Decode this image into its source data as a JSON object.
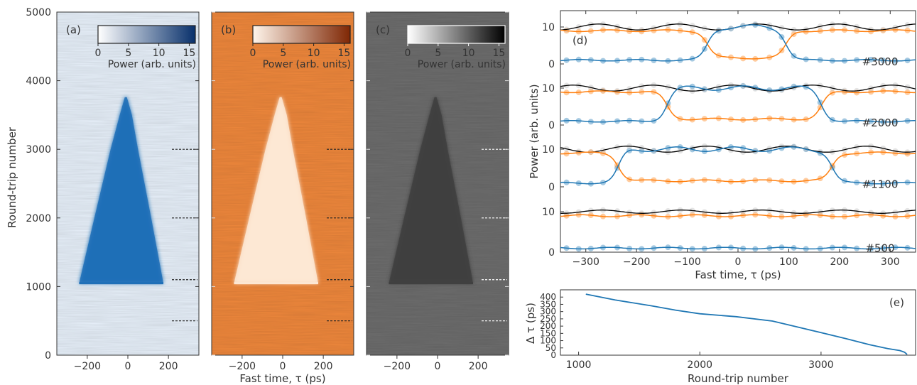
{
  "chart_data": [
    {
      "panel": "(a)",
      "type": "heatmap",
      "ylabel": "Round-trip number",
      "ylim": [
        0,
        5000
      ],
      "xlim": [
        -350,
        350
      ],
      "xticks": [
        "−200",
        "0",
        "200"
      ],
      "yticks": [
        "0",
        "1000",
        "2000",
        "3000",
        "4000",
        "5000"
      ],
      "colorbar": {
        "label": "Power (arb. units)",
        "ticks": [
          "0",
          "5",
          "10",
          "15"
        ],
        "range": [
          0,
          16
        ],
        "colormap": [
          "#ffffff",
          "#08306b"
        ]
      },
      "background_color": "#e8f1fb",
      "dome_color": "#1f6fb7",
      "dome_boundary": [
        {
          "y": 1050,
          "left": -240,
          "right": 175
        },
        {
          "y": 2000,
          "left": -165,
          "right": 115
        },
        {
          "y": 3000,
          "left": -85,
          "right": 50
        },
        {
          "y": 3500,
          "left": -40,
          "right": 20
        },
        {
          "y": 3760,
          "left": -15,
          "right": -5
        }
      ],
      "marker_rows": [
        500,
        1100,
        2000,
        3000
      ]
    },
    {
      "panel": "(b)",
      "type": "heatmap",
      "xlabel": "Fast time, τ (ps)",
      "ylim": [
        0,
        5000
      ],
      "xlim": [
        -350,
        350
      ],
      "xticks": [
        "−200",
        "0",
        "200"
      ],
      "colorbar": {
        "label": "Power (arb. units)",
        "ticks": [
          "0",
          "5",
          "10",
          "15"
        ],
        "range": [
          0,
          16
        ],
        "colormap": [
          "#fff5eb",
          "#7f2704"
        ]
      },
      "background_color": "#f0883c",
      "dome_color": "#fde7d3",
      "marker_rows": [
        500,
        1100,
        2000,
        3000
      ]
    },
    {
      "panel": "(c)",
      "type": "heatmap",
      "ylim": [
        0,
        5000
      ],
      "xlim": [
        -350,
        350
      ],
      "xticks": [
        "−200",
        "0",
        "200"
      ],
      "colorbar": {
        "label": "Power (arb. units)",
        "ticks": [
          "0",
          "5",
          "10",
          "15"
        ],
        "range": [
          0,
          16
        ],
        "colormap": [
          "#ffffff",
          "#000000"
        ]
      },
      "background_color": "#6d6d6d",
      "dome_color": "#404040",
      "marker_rows": [
        500,
        1100,
        2000,
        3000
      ]
    },
    {
      "panel": "(d)",
      "type": "line",
      "xlabel": "Fast time, τ (ps)",
      "ylabel": "Power (arb. units)",
      "xlim": [
        -350,
        350
      ],
      "xticks": [
        "−300",
        "−200",
        "−100",
        "0",
        "100",
        "200",
        "300"
      ],
      "colors": {
        "blue": "#1f77b4",
        "orange": "#ff7f0e",
        "black": "#000000",
        "grey_points": "#bbbbbb"
      },
      "traces": [
        {
          "label": "#3000",
          "tick_labels": [
            "10",
            "0"
          ],
          "left_edge": -60,
          "right_edge": 95
        },
        {
          "label": "#2000",
          "tick_labels": [
            "10",
            "0"
          ],
          "left_edge": -140,
          "right_edge": 165
        },
        {
          "label": "#1100",
          "tick_labels": [
            "10",
            "0"
          ],
          "left_edge": -235,
          "right_edge": 185
        },
        {
          "label": "#500",
          "tick_labels": [
            "10",
            "0"
          ],
          "left_edge": null,
          "right_edge": null
        }
      ]
    },
    {
      "panel": "(e)",
      "type": "line",
      "xlabel": "Round-trip number",
      "ylabel": "Δ τ (ps)",
      "xlim": [
        850,
        3780
      ],
      "ylim": [
        0,
        450
      ],
      "xticks": [
        "1000",
        "2000",
        "3000"
      ],
      "yticks": [
        "0",
        "50",
        "100",
        "150",
        "200",
        "250",
        "300",
        "350",
        "400"
      ],
      "color": "#1f77b4",
      "x": [
        1060,
        1300,
        1600,
        1800,
        2000,
        2300,
        2600,
        2800,
        3000,
        3200,
        3400,
        3550,
        3650,
        3690,
        3710
      ],
      "y": [
        420,
        380,
        340,
        310,
        285,
        265,
        235,
        195,
        155,
        115,
        72,
        45,
        32,
        20,
        5
      ]
    }
  ]
}
